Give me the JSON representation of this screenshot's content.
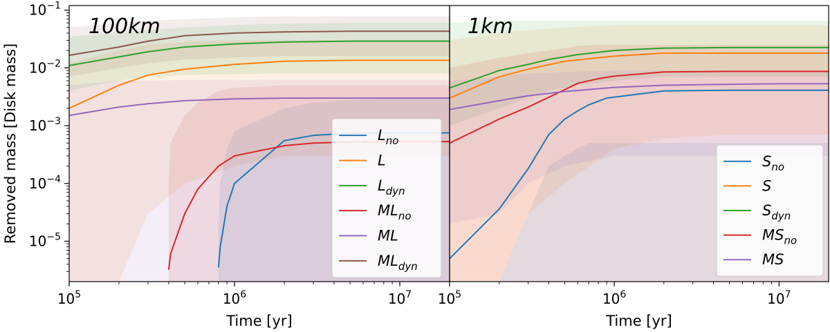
{
  "chart_data": [
    {
      "type": "line",
      "panel_title": "100km",
      "xlabel": "Time [yr]",
      "ylabel": "Removed mass [Disk mass]",
      "xscale": "log",
      "yscale": "log",
      "xlim": [
        100000,
        20000000
      ],
      "ylim": [
        2e-06,
        0.12
      ],
      "x_ticks": [
        {
          "value": 100000,
          "label": "10^5"
        },
        {
          "value": 1000000,
          "label": "10^6"
        },
        {
          "value": 10000000,
          "label": "10^7"
        }
      ],
      "y_ticks": [
        {
          "value": 1e-05,
          "label": "10^-5"
        },
        {
          "value": 0.0001,
          "label": "10^-4"
        },
        {
          "value": 0.001,
          "label": "10^-3"
        },
        {
          "value": 0.01,
          "label": "10^-2"
        },
        {
          "value": 0.1,
          "label": "10^-1"
        }
      ],
      "legend_position": "lower-right",
      "series": [
        {
          "name": "L",
          "sub": "no",
          "color": "#1f77b4",
          "x": [
            800000,
            820000,
            900000,
            1000000,
            2000000,
            3000000,
            5000000,
            10000000,
            20000000
          ],
          "y": [
            3.5e-06,
            8e-06,
            4e-05,
            0.0001,
            0.00055,
            0.00068,
            0.00074,
            0.00075,
            0.00075
          ],
          "band_lo": [
            2e-06,
            2e-06,
            2e-06,
            2e-06,
            2e-06,
            2e-06,
            2e-06,
            2e-06,
            2e-06
          ],
          "band_hi": [
            2e-05,
            0.0001,
            0.0004,
            0.0008,
            0.002,
            0.0025,
            0.0028,
            0.003,
            0.003
          ]
        },
        {
          "name": "L",
          "sub": "",
          "color": "#ff7f0e",
          "x": [
            100000,
            200000,
            300000,
            500000,
            1000000,
            2000000,
            5000000,
            10000000,
            20000000
          ],
          "y": [
            0.002,
            0.005,
            0.0075,
            0.0095,
            0.0115,
            0.013,
            0.0135,
            0.0135,
            0.0135
          ],
          "band_lo": [
            2e-06,
            2e-06,
            3e-05,
            0.0001,
            0.0002,
            0.0003,
            0.0003,
            0.0003,
            0.0003
          ],
          "band_hi": [
            0.012,
            0.02,
            0.025,
            0.028,
            0.03,
            0.03,
            0.03,
            0.03,
            0.03
          ]
        },
        {
          "name": "L",
          "sub": "dyn",
          "color": "#2ca02c",
          "x": [
            100000,
            200000,
            300000,
            500000,
            1000000,
            2000000,
            5000000,
            10000000,
            20000000
          ],
          "y": [
            0.011,
            0.0155,
            0.019,
            0.023,
            0.026,
            0.028,
            0.029,
            0.029,
            0.029
          ],
          "band_lo": [
            0.004,
            0.006,
            0.007,
            0.0075,
            0.0078,
            0.008,
            0.008,
            0.008,
            0.008
          ],
          "band_hi": [
            0.035,
            0.04,
            0.045,
            0.05,
            0.055,
            0.058,
            0.06,
            0.06,
            0.06
          ]
        },
        {
          "name": "ML",
          "sub": "no",
          "color": "#d62728",
          "x": [
            400000,
            410000,
            500000,
            600000,
            800000,
            1000000,
            2000000,
            3000000,
            5000000,
            10000000,
            20000000
          ],
          "y": [
            3.2e-06,
            6e-06,
            3e-05,
            8e-05,
            0.0002,
            0.0003,
            0.00045,
            0.0005,
            0.00052,
            0.00053,
            0.00053
          ],
          "band_lo": [
            2e-06,
            2e-06,
            2e-06,
            2e-06,
            2e-06,
            2e-06,
            2e-06,
            2e-06,
            2e-06,
            2e-06,
            2e-06
          ],
          "band_hi": [
            0.0001,
            0.0005,
            0.0015,
            0.0025,
            0.004,
            0.0045,
            0.005,
            0.005,
            0.005,
            0.005,
            0.005
          ]
        },
        {
          "name": "ML",
          "sub": "",
          "color": "#9467bd",
          "x": [
            100000,
            200000,
            300000,
            500000,
            1000000,
            2000000,
            5000000,
            10000000,
            20000000
          ],
          "y": [
            0.0015,
            0.0021,
            0.0024,
            0.0027,
            0.0029,
            0.003,
            0.003,
            0.003,
            0.003
          ],
          "band_lo": [
            2e-06,
            2e-06,
            2e-06,
            2e-06,
            2e-06,
            2e-06,
            2e-06,
            2e-06,
            2e-06
          ],
          "band_hi": [
            0.005,
            0.006,
            0.006,
            0.0062,
            0.0062,
            0.0062,
            0.0062,
            0.0062,
            0.0062
          ]
        },
        {
          "name": "ML",
          "sub": "dyn",
          "color": "#8c564b",
          "x": [
            100000,
            200000,
            300000,
            500000,
            1000000,
            2000000,
            5000000,
            10000000,
            20000000
          ],
          "y": [
            0.0165,
            0.023,
            0.029,
            0.036,
            0.04,
            0.042,
            0.043,
            0.043,
            0.043
          ],
          "band_lo": [
            0.007,
            0.01,
            0.012,
            0.014,
            0.015,
            0.016,
            0.016,
            0.016,
            0.016
          ],
          "band_hi": [
            0.05,
            0.06,
            0.065,
            0.07,
            0.075,
            0.078,
            0.078,
            0.078,
            0.078
          ]
        }
      ]
    },
    {
      "type": "line",
      "panel_title": "1km",
      "xlabel": "Time [yr]",
      "ylabel": "",
      "xscale": "log",
      "yscale": "log",
      "xlim": [
        100000,
        20000000
      ],
      "ylim": [
        2e-06,
        0.12
      ],
      "x_ticks": [
        {
          "value": 100000,
          "label": "10^5"
        },
        {
          "value": 1000000,
          "label": "10^6"
        },
        {
          "value": 10000000,
          "label": "10^7"
        }
      ],
      "y_ticks": [],
      "legend_position": "lower-right",
      "series": [
        {
          "name": "S",
          "sub": "no",
          "color": "#1f77b4",
          "x": [
            100000,
            200000,
            300000,
            400000,
            500000,
            600000,
            700000,
            900000,
            2000000,
            5000000,
            10000000,
            20000000
          ],
          "y": [
            5e-06,
            3.6e-05,
            0.00018,
            0.0007,
            0.0013,
            0.0018,
            0.0023,
            0.003,
            0.004,
            0.0041,
            0.0041,
            0.0041
          ],
          "band_lo": [
            2e-06,
            2e-06,
            2e-06,
            2e-06,
            2e-06,
            2e-06,
            2e-06,
            2e-06,
            2e-06,
            2e-06,
            2e-06,
            2e-06
          ],
          "band_hi": [
            2e-06,
            2e-06,
            3e-05,
            0.0002,
            0.0003,
            0.0004,
            0.0005,
            0.0005,
            0.0005,
            0.0005,
            0.0005,
            0.0005
          ]
        },
        {
          "name": "S",
          "sub": "",
          "color": "#ff7f0e",
          "x": [
            100000,
            200000,
            300000,
            500000,
            1000000,
            2000000,
            5000000,
            10000000,
            20000000
          ],
          "y": [
            0.003,
            0.007,
            0.0095,
            0.013,
            0.016,
            0.018,
            0.018,
            0.018,
            0.018
          ],
          "band_lo": [
            2e-06,
            2e-06,
            3e-05,
            0.0001,
            0.0004,
            0.0006,
            0.0007,
            0.0007,
            0.0007
          ],
          "band_hi": [
            0.03,
            0.04,
            0.045,
            0.05,
            0.055,
            0.055,
            0.055,
            0.055,
            0.055
          ]
        },
        {
          "name": "S",
          "sub": "dyn",
          "color": "#2ca02c",
          "x": [
            100000,
            200000,
            300000,
            400000,
            600000,
            1000000,
            2000000,
            5000000,
            10000000,
            20000000
          ],
          "y": [
            0.0045,
            0.009,
            0.0115,
            0.014,
            0.017,
            0.02,
            0.022,
            0.0225,
            0.0225,
            0.0225
          ],
          "band_lo": [
            0.001,
            0.002,
            0.003,
            0.004,
            0.005,
            0.006,
            0.007,
            0.007,
            0.007,
            0.007
          ],
          "band_hi": [
            0.06,
            0.065,
            0.065,
            0.065,
            0.065,
            0.065,
            0.065,
            0.065,
            0.065,
            0.065
          ]
        },
        {
          "name": "MS",
          "sub": "no",
          "color": "#d62728",
          "x": [
            100000,
            200000,
            300000,
            400000,
            500000,
            600000,
            800000,
            1000000,
            2000000,
            5000000,
            10000000,
            20000000
          ],
          "y": [
            0.0005,
            0.0013,
            0.0021,
            0.0031,
            0.0042,
            0.0054,
            0.0065,
            0.0072,
            0.0085,
            0.0087,
            0.0087,
            0.0087
          ],
          "band_lo": [
            2e-06,
            2e-06,
            2e-06,
            2e-06,
            2e-06,
            2e-06,
            2e-06,
            2e-06,
            2e-06,
            2e-06,
            2e-06,
            2e-06
          ],
          "band_hi": [
            0.01,
            0.015,
            0.018,
            0.02,
            0.022,
            0.024,
            0.025,
            0.025,
            0.025,
            0.025,
            0.025,
            0.025
          ]
        },
        {
          "name": "MS",
          "sub": "",
          "color": "#9467bd",
          "x": [
            100000,
            200000,
            300000,
            500000,
            1000000,
            2000000,
            5000000,
            10000000,
            20000000
          ],
          "y": [
            0.0019,
            0.0027,
            0.0033,
            0.0039,
            0.0046,
            0.005,
            0.0052,
            0.0053,
            0.0053
          ],
          "band_lo": [
            2e-05,
            3e-05,
            0.0001,
            0.0002,
            0.0003,
            0.0003,
            0.0003,
            0.0003,
            0.0003
          ],
          "band_hi": [
            0.006,
            0.007,
            0.008,
            0.0085,
            0.009,
            0.009,
            0.009,
            0.009,
            0.009
          ]
        }
      ]
    }
  ]
}
